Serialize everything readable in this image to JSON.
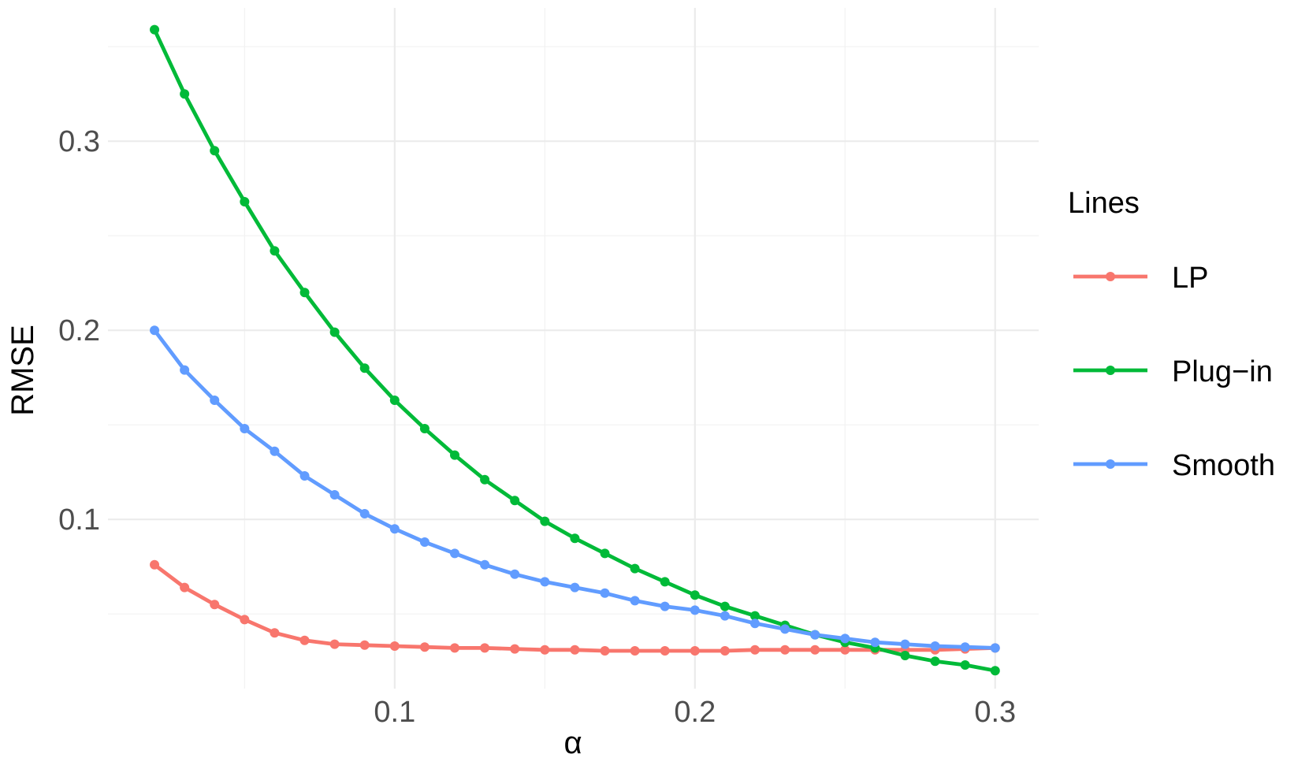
{
  "chart_data": {
    "type": "line",
    "xlabel": "α",
    "ylabel": "RMSE",
    "xlim": [
      0.0045,
      0.3145
    ],
    "ylim": [
      0.0105,
      0.3705
    ],
    "x_ticks": [
      0.1,
      0.2,
      0.3
    ],
    "x_tick_labels": [
      "0.1",
      "0.2",
      "0.3"
    ],
    "y_ticks": [
      0.1,
      0.2,
      0.3
    ],
    "y_tick_labels": [
      "0.1",
      "0.2",
      "0.3"
    ],
    "grid": true,
    "legend": {
      "title": "Lines",
      "placement": "right"
    },
    "x": [
      0.02,
      0.03,
      0.04,
      0.05,
      0.06,
      0.07,
      0.08,
      0.09,
      0.1,
      0.11,
      0.12,
      0.13,
      0.14,
      0.15,
      0.16,
      0.17,
      0.18,
      0.19,
      0.2,
      0.21,
      0.22,
      0.23,
      0.24,
      0.25,
      0.26,
      0.27,
      0.28,
      0.29,
      0.3
    ],
    "series": [
      {
        "name": "LP",
        "color": "#f8766d",
        "values": [
          0.076,
          0.064,
          0.055,
          0.047,
          0.04,
          0.036,
          0.034,
          0.0335,
          0.033,
          0.0325,
          0.032,
          0.032,
          0.0315,
          0.031,
          0.031,
          0.0305,
          0.0305,
          0.0305,
          0.0305,
          0.0305,
          0.031,
          0.031,
          0.031,
          0.031,
          0.031,
          0.031,
          0.031,
          0.0315,
          0.032
        ]
      },
      {
        "name": "Plug−in",
        "color": "#00ba38",
        "values": [
          0.359,
          0.325,
          0.295,
          0.268,
          0.242,
          0.22,
          0.199,
          0.18,
          0.163,
          0.148,
          0.134,
          0.121,
          0.11,
          0.099,
          0.09,
          0.082,
          0.074,
          0.067,
          0.06,
          0.054,
          0.049,
          0.044,
          0.039,
          0.035,
          0.032,
          0.028,
          0.025,
          0.023,
          0.02
        ]
      },
      {
        "name": "Smooth",
        "color": "#619cff",
        "values": [
          0.2,
          0.179,
          0.163,
          0.148,
          0.136,
          0.123,
          0.113,
          0.103,
          0.095,
          0.088,
          0.082,
          0.076,
          0.071,
          0.067,
          0.064,
          0.061,
          0.057,
          0.054,
          0.052,
          0.049,
          0.045,
          0.042,
          0.039,
          0.037,
          0.035,
          0.034,
          0.033,
          0.0325,
          0.032
        ]
      }
    ]
  }
}
